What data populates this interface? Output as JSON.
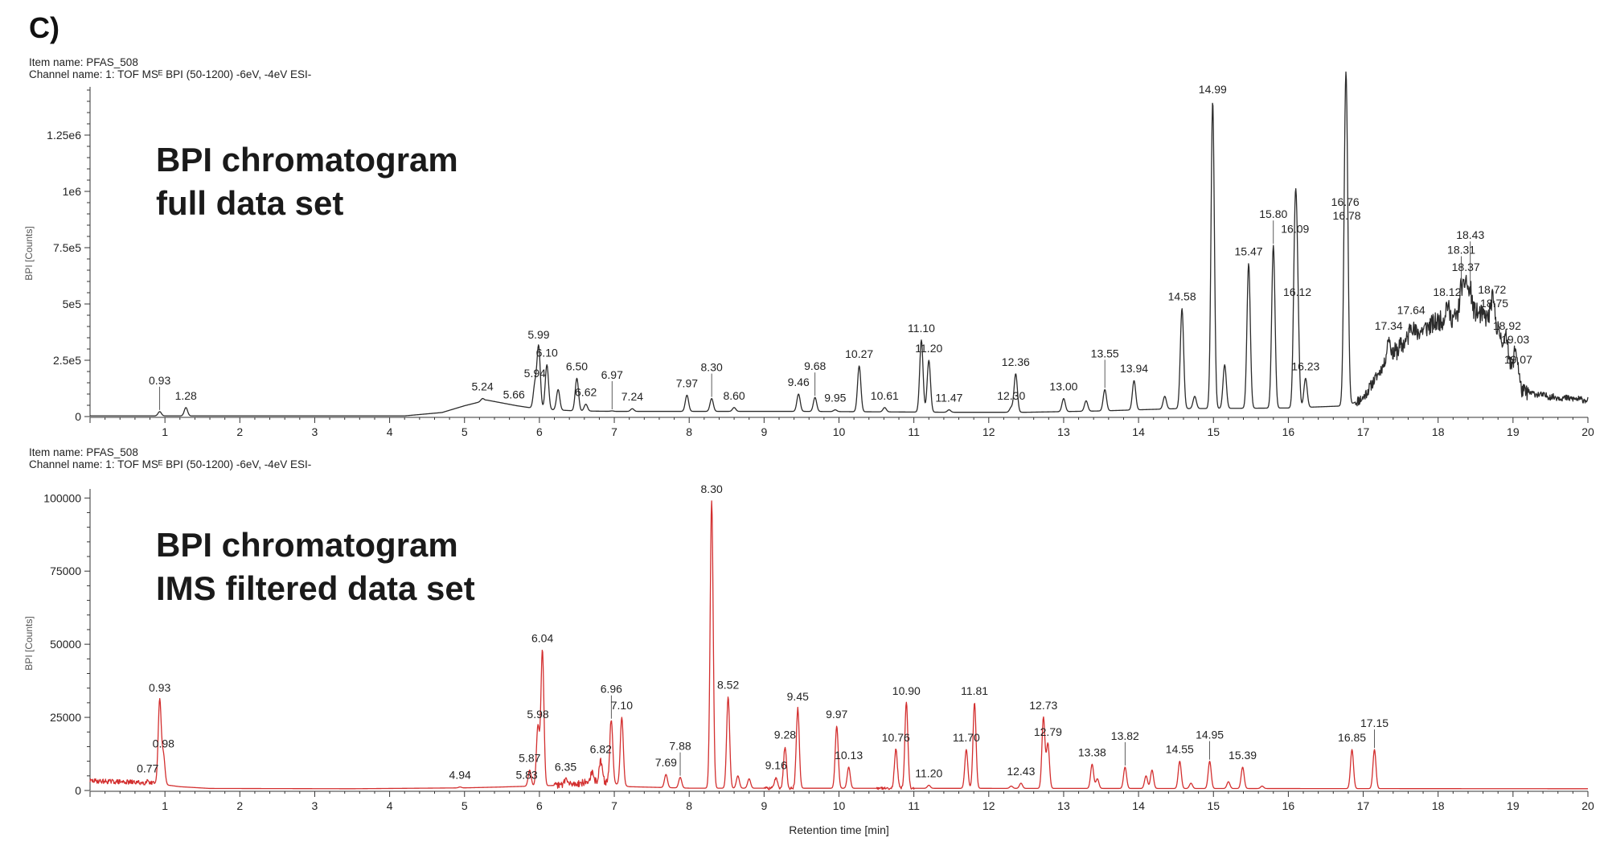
{
  "panel_label": "C)",
  "top": {
    "item_name": "Item name: PFAS_508",
    "channel_name": "Channel name: 1: TOF MSᴱ BPI (50-1200) -6eV, -4eV ESI-",
    "overlay_line1": "BPI chromatogram",
    "overlay_line2": "full data set"
  },
  "bottom": {
    "item_name": "Item name: PFAS_508",
    "channel_name": "Channel name: 1: TOF MSᴱ BPI (50-1200) -6eV, -4eV ESI-",
    "overlay_line1": "BPI chromatogram",
    "overlay_line2": "IMS filtered data set"
  },
  "chart_data": [
    {
      "type": "line",
      "title": "",
      "xlabel": "",
      "ylabel": "BPI [Counts]",
      "xlim": [
        0,
        20
      ],
      "ylim": [
        0,
        1450000
      ],
      "x_ticks": [
        1,
        2,
        3,
        4,
        5,
        6,
        7,
        8,
        9,
        10,
        11,
        12,
        13,
        14,
        15,
        16,
        17,
        18,
        19,
        20
      ],
      "y_ticks": [
        0,
        250000,
        500000,
        750000,
        1000000,
        1250000
      ],
      "y_tick_labels": [
        "0",
        "2.5e5",
        "5e5",
        "7.5e5",
        "1e6",
        "1.25e6"
      ],
      "color": "#2b2b2b",
      "baseline": 3000,
      "hump": [
        [
          4.2,
          0
        ],
        [
          4.7,
          15000
        ],
        [
          5.0,
          45000
        ],
        [
          5.3,
          70000
        ],
        [
          5.7,
          45000
        ],
        [
          6.0,
          30000
        ],
        [
          6.5,
          22000
        ],
        [
          7.0,
          20000
        ],
        [
          7.5,
          20000
        ],
        [
          8.5,
          20000
        ],
        [
          9.5,
          20000
        ],
        [
          10.5,
          18000
        ],
        [
          11.5,
          16000
        ],
        [
          12.5,
          16000
        ],
        [
          13.5,
          22000
        ],
        [
          14.5,
          32000
        ],
        [
          16.0,
          35000
        ],
        [
          16.8,
          45000
        ],
        [
          17.0,
          80000
        ],
        [
          17.3,
          240000
        ],
        [
          17.64,
          355000
        ],
        [
          18.0,
          420000
        ],
        [
          18.5,
          460000
        ],
        [
          18.75,
          420000
        ],
        [
          18.9,
          300000
        ],
        [
          19.0,
          180000
        ],
        [
          19.1,
          110000
        ],
        [
          19.5,
          85000
        ],
        [
          20.0,
          70000
        ]
      ],
      "noise": [
        [
          16.9,
          17.4,
          25000
        ],
        [
          17.4,
          18.8,
          45000
        ],
        [
          18.8,
          19.2,
          35000
        ],
        [
          19.2,
          20.0,
          15000
        ]
      ],
      "peaks": [
        {
          "x": 0.93,
          "y": 22000,
          "label": "0.93"
        },
        {
          "x": 1.28,
          "y": 40000,
          "label": "1.28"
        },
        {
          "x": 5.24,
          "y": 80000,
          "label": "5.24"
        },
        {
          "x": 5.66,
          "y": 45000,
          "label": "5.66"
        },
        {
          "x": 5.94,
          "y": 140000,
          "label": "5.94"
        },
        {
          "x": 5.99,
          "y": 310000,
          "label": "5.99"
        },
        {
          "x": 6.1,
          "y": 230000,
          "label": "6.10"
        },
        {
          "x": 6.25,
          "y": 120000
        },
        {
          "x": 6.5,
          "y": 170000,
          "label": "6.50"
        },
        {
          "x": 6.62,
          "y": 55000,
          "label": "6.62"
        },
        {
          "x": 6.97,
          "y": 25000,
          "label": "6.97"
        },
        {
          "x": 7.24,
          "y": 35000,
          "label": "7.24"
        },
        {
          "x": 7.97,
          "y": 95000,
          "label": "7.97"
        },
        {
          "x": 8.3,
          "y": 80000,
          "label": "8.30"
        },
        {
          "x": 8.6,
          "y": 40000,
          "label": "8.60"
        },
        {
          "x": 9.46,
          "y": 100000,
          "label": "9.46"
        },
        {
          "x": 9.68,
          "y": 85000,
          "label": "9.68"
        },
        {
          "x": 9.95,
          "y": 30000,
          "label": "9.95"
        },
        {
          "x": 10.27,
          "y": 225000,
          "label": "10.27"
        },
        {
          "x": 10.61,
          "y": 40000,
          "label": "10.61"
        },
        {
          "x": 11.1,
          "y": 340000,
          "label": "11.10"
        },
        {
          "x": 11.2,
          "y": 250000,
          "label": "11.20"
        },
        {
          "x": 11.47,
          "y": 30000,
          "label": "11.47"
        },
        {
          "x": 12.3,
          "y": 40000,
          "label": "12.30"
        },
        {
          "x": 12.36,
          "y": 190000,
          "label": "12.36"
        },
        {
          "x": 13.0,
          "y": 80000,
          "label": "13.00"
        },
        {
          "x": 13.3,
          "y": 70000
        },
        {
          "x": 13.55,
          "y": 120000,
          "label": "13.55"
        },
        {
          "x": 13.94,
          "y": 160000,
          "label": "13.94"
        },
        {
          "x": 14.35,
          "y": 90000
        },
        {
          "x": 14.58,
          "y": 480000,
          "label": "14.58"
        },
        {
          "x": 14.75,
          "y": 90000
        },
        {
          "x": 14.99,
          "y": 1400000,
          "label": "14.99"
        },
        {
          "x": 15.15,
          "y": 230000
        },
        {
          "x": 15.47,
          "y": 680000,
          "label": "15.47"
        },
        {
          "x": 15.8,
          "y": 760000,
          "label": "15.80"
        },
        {
          "x": 16.09,
          "y": 780000,
          "label": "16.09"
        },
        {
          "x": 16.12,
          "y": 500000,
          "label": "16.12"
        },
        {
          "x": 16.23,
          "y": 170000,
          "label": "16.23"
        },
        {
          "x": 16.76,
          "y": 900000,
          "label": "16.76"
        },
        {
          "x": 16.78,
          "y": 840000,
          "label": "16.78"
        },
        {
          "x": 17.34,
          "y": 350000,
          "label": "17.34"
        },
        {
          "x": 17.64,
          "y": 420000,
          "label": "17.64"
        },
        {
          "x": 18.12,
          "y": 500000,
          "label": "18.12"
        },
        {
          "x": 18.31,
          "y": 580000,
          "label": "18.31"
        },
        {
          "x": 18.37,
          "y": 610000,
          "label": "18.37"
        },
        {
          "x": 18.43,
          "y": 560000,
          "label": "18.43"
        },
        {
          "x": 18.72,
          "y": 510000,
          "label": "18.72"
        },
        {
          "x": 18.75,
          "y": 450000,
          "label": "18.75"
        },
        {
          "x": 18.92,
          "y": 350000,
          "label": "18.92"
        },
        {
          "x": 19.03,
          "y": 290000,
          "label": "19.03"
        },
        {
          "x": 19.07,
          "y": 200000,
          "label": "19.07"
        }
      ]
    },
    {
      "type": "line",
      "title": "",
      "xlabel": "Retention time [min]",
      "ylabel": "BPI [Counts]",
      "xlim": [
        0,
        20
      ],
      "ylim": [
        0,
        102000
      ],
      "x_ticks": [
        1,
        2,
        3,
        4,
        5,
        6,
        7,
        8,
        9,
        10,
        11,
        12,
        13,
        14,
        15,
        16,
        17,
        18,
        19,
        20
      ],
      "y_ticks": [
        0,
        25000,
        50000,
        75000,
        100000
      ],
      "y_tick_labels": [
        "0",
        "25000",
        "50000",
        "75000",
        "100000"
      ],
      "color": "#d32f2f",
      "baseline": 300,
      "hump": [
        [
          0.0,
          3000
        ],
        [
          0.6,
          2500
        ],
        [
          0.9,
          2000
        ],
        [
          1.2,
          1000
        ],
        [
          1.6,
          400
        ],
        [
          3.5,
          300
        ],
        [
          5.0,
          600
        ],
        [
          5.5,
          900
        ],
        [
          6.3,
          1500
        ],
        [
          6.8,
          3000
        ],
        [
          7.2,
          1000
        ],
        [
          8.0,
          500
        ],
        [
          20.0,
          300
        ]
      ],
      "noise": [
        [
          0.0,
          0.85,
          800
        ],
        [
          6.2,
          6.95,
          1200
        ],
        [
          9.0,
          9.5,
          500
        ],
        [
          10.5,
          11.0,
          400
        ]
      ],
      "peaks": [
        {
          "x": 0.77,
          "y": 3500,
          "label": "0.77"
        },
        {
          "x": 0.93,
          "y": 31000,
          "label": "0.93"
        },
        {
          "x": 0.98,
          "y": 12000,
          "label": "0.98"
        },
        {
          "x": 4.94,
          "y": 1200,
          "label": "4.94"
        },
        {
          "x": 5.83,
          "y": 1200,
          "label": "5.83"
        },
        {
          "x": 5.87,
          "y": 7000,
          "label": "5.87"
        },
        {
          "x": 5.98,
          "y": 22000,
          "label": "5.98"
        },
        {
          "x": 6.04,
          "y": 48000,
          "label": "6.04"
        },
        {
          "x": 6.35,
          "y": 4000,
          "label": "6.35"
        },
        {
          "x": 6.7,
          "y": 6000
        },
        {
          "x": 6.82,
          "y": 10000,
          "label": "6.82"
        },
        {
          "x": 6.96,
          "y": 24000,
          "label": "6.96"
        },
        {
          "x": 7.1,
          "y": 25000,
          "label": "7.10"
        },
        {
          "x": 7.69,
          "y": 5500,
          "label": "7.69"
        },
        {
          "x": 7.88,
          "y": 4500,
          "label": "7.88"
        },
        {
          "x": 8.3,
          "y": 99000,
          "label": "8.30"
        },
        {
          "x": 8.52,
          "y": 32000,
          "label": "8.52"
        },
        {
          "x": 8.65,
          "y": 5000
        },
        {
          "x": 8.8,
          "y": 4000
        },
        {
          "x": 9.16,
          "y": 4500,
          "label": "9.16"
        },
        {
          "x": 9.28,
          "y": 15000,
          "label": "9.28"
        },
        {
          "x": 9.45,
          "y": 28000,
          "label": "9.45"
        },
        {
          "x": 9.97,
          "y": 22000,
          "label": "9.97"
        },
        {
          "x": 10.13,
          "y": 8000,
          "label": "10.13"
        },
        {
          "x": 10.76,
          "y": 14000,
          "label": "10.76"
        },
        {
          "x": 10.9,
          "y": 30000,
          "label": "10.90"
        },
        {
          "x": 11.2,
          "y": 1800,
          "label": "11.20"
        },
        {
          "x": 11.7,
          "y": 14000,
          "label": "11.70"
        },
        {
          "x": 11.81,
          "y": 30000,
          "label": "11.81"
        },
        {
          "x": 12.3,
          "y": 1500
        },
        {
          "x": 12.43,
          "y": 2500,
          "label": "12.43"
        },
        {
          "x": 12.73,
          "y": 25000,
          "label": "12.73"
        },
        {
          "x": 12.79,
          "y": 16000,
          "label": "12.79"
        },
        {
          "x": 13.38,
          "y": 9000,
          "label": "13.38"
        },
        {
          "x": 13.45,
          "y": 4000
        },
        {
          "x": 13.82,
          "y": 8000,
          "label": "13.82"
        },
        {
          "x": 14.1,
          "y": 5000
        },
        {
          "x": 14.18,
          "y": 7000
        },
        {
          "x": 14.55,
          "y": 10000,
          "label": "14.55"
        },
        {
          "x": 14.7,
          "y": 2500
        },
        {
          "x": 14.95,
          "y": 10000,
          "label": "14.95"
        },
        {
          "x": 15.2,
          "y": 3000
        },
        {
          "x": 15.39,
          "y": 8000,
          "label": "15.39"
        },
        {
          "x": 15.65,
          "y": 1500
        },
        {
          "x": 16.85,
          "y": 14000,
          "label": "16.85"
        },
        {
          "x": 17.15,
          "y": 14000,
          "label": "17.15"
        }
      ]
    }
  ]
}
